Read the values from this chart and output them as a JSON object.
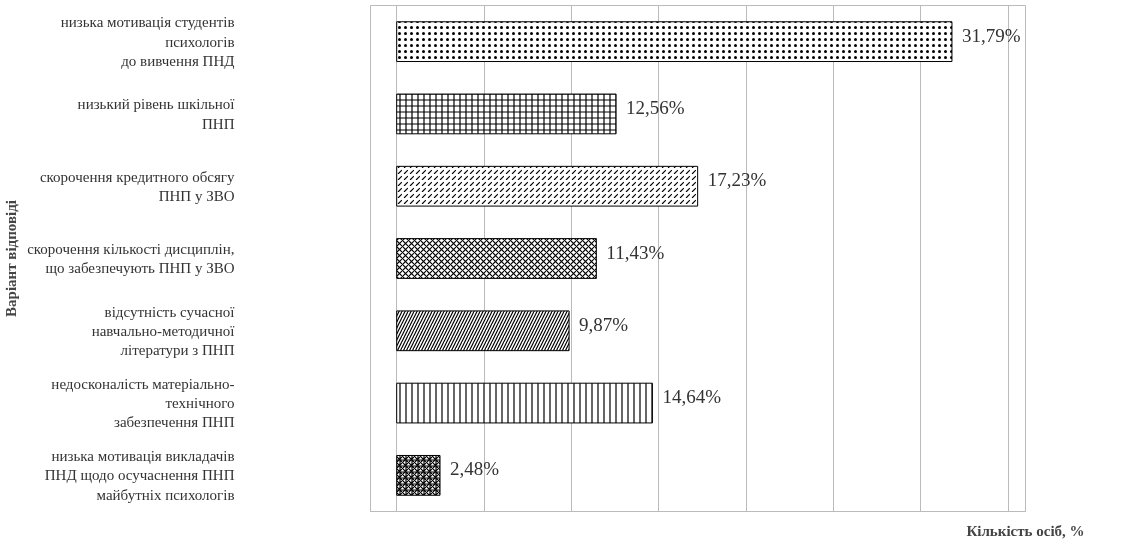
{
  "chart_data": {
    "type": "bar",
    "orientation": "horizontal",
    "xlabel": "Кількість осіб, %",
    "ylabel": "Варіант відповіді",
    "categories": [
      "низька мотивація студентів\nпсихологів\nдо вивчення ПНД",
      "низький рівень шкільної\nПНП",
      "скорочення кредитного обсягу\nПНП у ЗВО",
      "скорочення кількості дисциплін,\nщо забезпечують ПНП у ЗВО",
      "відсутність сучасної\nнавчально-методичної\nлітератури з ПНП",
      "недосконаліcть матеріально-\nтехнічного\nзабезпечення ПНП",
      "низька мотивація викладачів\nПНД щодо осучаснення ПНП\nмайбутніх психологів"
    ],
    "values": [
      31.79,
      12.56,
      17.23,
      11.43,
      9.87,
      14.64,
      2.48
    ],
    "value_labels": [
      "31,79%",
      "12,56%",
      "17,23%",
      "11,43%",
      "9,87%",
      "14,64%",
      "2,48%"
    ],
    "color": "#ffffff",
    "xlim": [
      -1.5,
      36
    ],
    "xticks": [
      {
        "value": 0,
        "label": null
      },
      {
        "value": 5,
        "label": null
      },
      {
        "value": 10,
        "label": null
      },
      {
        "value": 15,
        "label": null
      },
      {
        "value": 20,
        "label": null
      },
      {
        "value": 25,
        "label": null
      },
      {
        "value": 30,
        "label": null
      },
      {
        "value": 35,
        "label": null
      }
    ],
    "grid": "x",
    "tick_labels": "y"
  }
}
